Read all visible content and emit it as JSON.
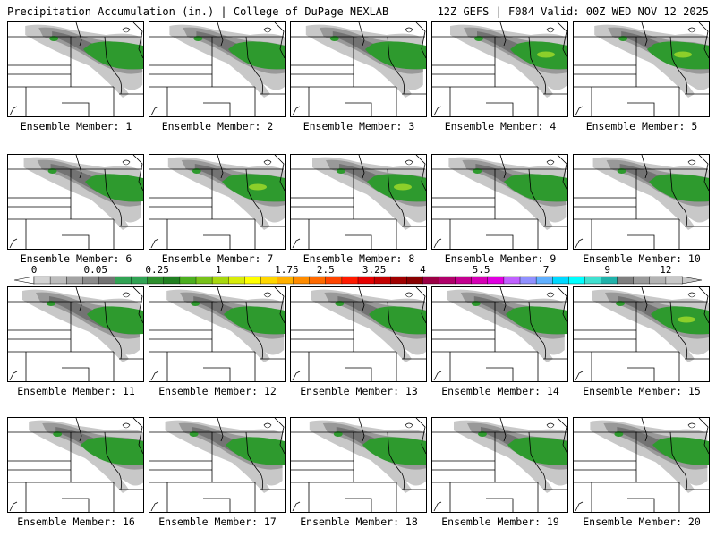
{
  "header": {
    "left_title": "Precipitation Accumulation (in.) | College of DuPage NEXLAB",
    "right_title": "12Z GEFS | F084 Valid: 00Z WED NOV 12 2025"
  },
  "member_label_prefix": "Ensemble Member: ",
  "members": [
    1,
    2,
    3,
    4,
    5,
    6,
    7,
    8,
    9,
    10,
    11,
    12,
    13,
    14,
    15,
    16,
    17,
    18,
    19,
    20
  ],
  "colorbar": {
    "tick_labels": [
      "0",
      "0.05",
      "0.25",
      "1",
      "1.75",
      "2.5",
      "3.25",
      "4",
      "5.5",
      "7",
      "9",
      "12"
    ],
    "colors": [
      "#d3d3d3",
      "#bdbdbd",
      "#a3a3a3",
      "#8c8c8c",
      "#737373",
      "#31a354",
      "#31a354",
      "#2d8f2d",
      "#218021",
      "#4caf1f",
      "#78c21a",
      "#a8d80f",
      "#d8ec0a",
      "#ffff00",
      "#ffd700",
      "#ffb000",
      "#ff8c00",
      "#ff6a00",
      "#ff4500",
      "#ff1a00",
      "#e60000",
      "#c40000",
      "#a00000",
      "#880000",
      "#9b0044",
      "#b0006a",
      "#c4008f",
      "#d600b5",
      "#e000e0",
      "#c060ff",
      "#9090ff",
      "#60b0ff",
      "#00d8ff",
      "#00ffff",
      "#40e0d0",
      "#20b2aa",
      "#7f7f7f",
      "#9a9a9a",
      "#b3b3b3",
      "#c8c8c8"
    ]
  },
  "styles": {
    "precip_light": "#c8c8c8",
    "precip_med": "#999999",
    "precip_heavy": "#737373",
    "precip_green": "#2e9a2e",
    "precip_lime": "#8ccf2a",
    "border_color": "#000000"
  }
}
